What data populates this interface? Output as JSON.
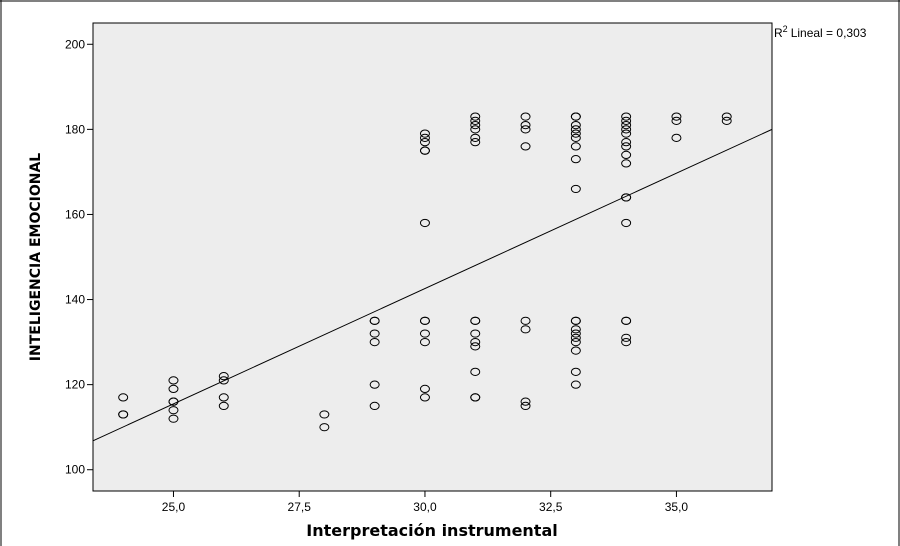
{
  "chart_data": {
    "type": "scatter",
    "title": "",
    "xlabel": "Interpretación instrumental",
    "ylabel": "INTELIGENCIA EMOCIONAL",
    "xlim": [
      23.4,
      36.9
    ],
    "ylim": [
      95,
      205
    ],
    "x_ticks": [
      {
        "value": 25,
        "label": "25,0"
      },
      {
        "value": 27.5,
        "label": "27,5"
      },
      {
        "value": 30,
        "label": "30,0"
      },
      {
        "value": 32.5,
        "label": "32,5"
      },
      {
        "value": 35,
        "label": "35,0"
      }
    ],
    "y_ticks": [
      {
        "value": 100,
        "label": "100"
      },
      {
        "value": 120,
        "label": "120"
      },
      {
        "value": 140,
        "label": "140"
      },
      {
        "value": 160,
        "label": "160"
      },
      {
        "value": 180,
        "label": "180"
      },
      {
        "value": 200,
        "label": "200"
      }
    ],
    "grid": false,
    "plot_background": "#ededed",
    "marker": "open-circle",
    "fit_line": {
      "type": "linear",
      "r2_label": "Lineal = 0,303",
      "from": [
        23.4,
        106.8
      ],
      "to": [
        36.9,
        180.0
      ]
    },
    "points": [
      [
        24,
        117
      ],
      [
        24,
        113
      ],
      [
        24,
        113
      ],
      [
        25,
        121
      ],
      [
        25,
        119
      ],
      [
        25,
        116
      ],
      [
        25,
        116
      ],
      [
        25,
        114
      ],
      [
        25,
        112
      ],
      [
        26,
        122
      ],
      [
        26,
        121
      ],
      [
        26,
        117
      ],
      [
        26,
        115
      ],
      [
        28,
        113
      ],
      [
        28,
        110
      ],
      [
        29,
        135
      ],
      [
        29,
        135
      ],
      [
        29,
        132
      ],
      [
        29,
        130
      ],
      [
        29,
        120
      ],
      [
        29,
        115
      ],
      [
        30,
        179
      ],
      [
        30,
        178
      ],
      [
        30,
        177
      ],
      [
        30,
        175
      ],
      [
        30,
        175
      ],
      [
        30,
        158
      ],
      [
        30,
        135
      ],
      [
        30,
        135
      ],
      [
        30,
        132
      ],
      [
        30,
        130
      ],
      [
        30,
        119
      ],
      [
        30,
        117
      ],
      [
        31,
        183
      ],
      [
        31,
        182
      ],
      [
        31,
        181
      ],
      [
        31,
        180
      ],
      [
        31,
        178
      ],
      [
        31,
        177
      ],
      [
        31,
        135
      ],
      [
        31,
        135
      ],
      [
        31,
        132
      ],
      [
        31,
        130
      ],
      [
        31,
        129
      ],
      [
        31,
        123
      ],
      [
        31,
        117
      ],
      [
        31,
        117
      ],
      [
        32,
        183
      ],
      [
        32,
        181
      ],
      [
        32,
        180
      ],
      [
        32,
        176
      ],
      [
        32,
        135
      ],
      [
        32,
        133
      ],
      [
        32,
        116
      ],
      [
        32,
        115
      ],
      [
        33,
        183
      ],
      [
        33,
        183
      ],
      [
        33,
        181
      ],
      [
        33,
        180
      ],
      [
        33,
        179
      ],
      [
        33,
        178
      ],
      [
        33,
        176
      ],
      [
        33,
        173
      ],
      [
        33,
        166
      ],
      [
        33,
        135
      ],
      [
        33,
        135
      ],
      [
        33,
        133
      ],
      [
        33,
        132
      ],
      [
        33,
        131
      ],
      [
        33,
        130
      ],
      [
        33,
        128
      ],
      [
        33,
        123
      ],
      [
        33,
        120
      ],
      [
        34,
        183
      ],
      [
        34,
        182
      ],
      [
        34,
        181
      ],
      [
        34,
        180
      ],
      [
        34,
        179
      ],
      [
        34,
        177
      ],
      [
        34,
        176
      ],
      [
        34,
        174
      ],
      [
        34,
        172
      ],
      [
        34,
        164
      ],
      [
        34,
        164
      ],
      [
        34,
        158
      ],
      [
        34,
        135
      ],
      [
        34,
        135
      ],
      [
        34,
        131
      ],
      [
        34,
        130
      ],
      [
        35,
        183
      ],
      [
        35,
        182
      ],
      [
        35,
        178
      ],
      [
        36,
        183
      ],
      [
        36,
        182
      ]
    ]
  }
}
